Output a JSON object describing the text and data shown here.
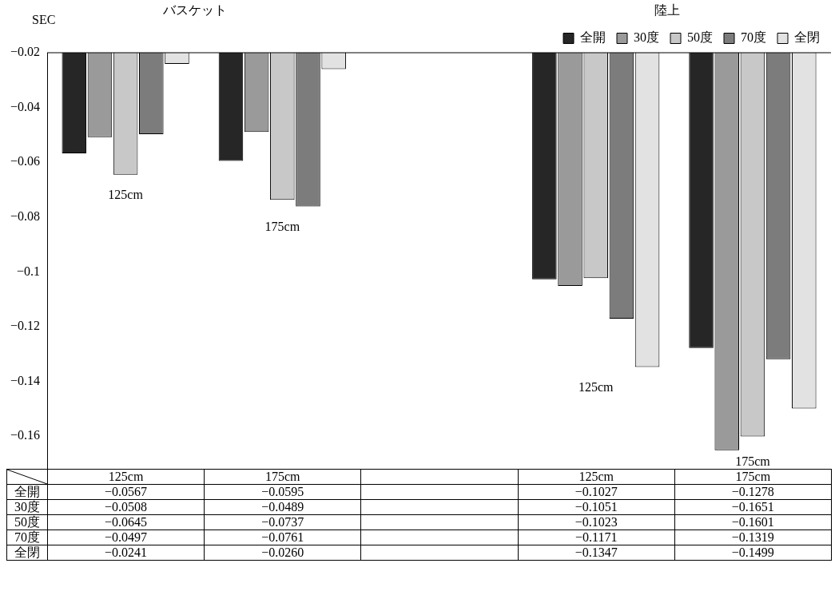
{
  "chart_data": {
    "type": "bar",
    "ylabel": "SEC",
    "categories": [
      "125cm",
      "175cm",
      null,
      "125cm",
      "175cm"
    ],
    "series": [
      {
        "name": "全開",
        "color": "#262626",
        "values": [
          -0.0567,
          -0.0595,
          null,
          -0.1027,
          -0.1278
        ],
        "value_labels": [
          "−0.0567",
          "−0.0595",
          null,
          "−0.1027",
          "−0.1278"
        ]
      },
      {
        "name": "30度",
        "color": "#9a9a9a",
        "values": [
          -0.0508,
          -0.0489,
          null,
          -0.1051,
          -0.1651
        ],
        "value_labels": [
          "−0.0508",
          "−0.0489",
          null,
          "−0.1051",
          "−0.1651"
        ]
      },
      {
        "name": "50度",
        "color": "#c8c8c8",
        "values": [
          -0.0645,
          -0.0737,
          null,
          -0.1023,
          -0.1601
        ],
        "value_labels": [
          "−0.0645",
          "−0.0737",
          null,
          "−0.1023",
          "−0.1601"
        ]
      },
      {
        "name": "70度",
        "color": "#7c7c7c",
        "values": [
          -0.0497,
          -0.0761,
          null,
          -0.1171,
          -0.1319
        ],
        "value_labels": [
          "−0.0497",
          "−0.0761",
          null,
          "−0.1171",
          "−0.1319"
        ]
      },
      {
        "name": "全閉",
        "color": "#e2e2e2",
        "values": [
          -0.0241,
          -0.026,
          null,
          -0.1347,
          -0.1499
        ],
        "value_labels": [
          "−0.0241",
          "−0.0260",
          null,
          "−0.1347",
          "−0.1499"
        ]
      }
    ],
    "ylim": [
      -0.172,
      -0.02
    ],
    "yticks": [
      {
        "value": -0.02,
        "label": "−0.02"
      },
      {
        "value": -0.04,
        "label": "−0.04"
      },
      {
        "value": -0.06,
        "label": "−0.06"
      },
      {
        "value": -0.08,
        "label": "−0.08"
      },
      {
        "value": -0.1,
        "label": "−0.1"
      },
      {
        "value": -0.12,
        "label": "−0.12"
      },
      {
        "value": -0.14,
        "label": "−0.14"
      },
      {
        "value": -0.16,
        "label": "−0.16"
      }
    ],
    "grid": false,
    "legend": "top right",
    "annotations": [
      "バスケット",
      "陸上",
      "125cm",
      "175cm",
      "125cm",
      "175cm"
    ]
  }
}
